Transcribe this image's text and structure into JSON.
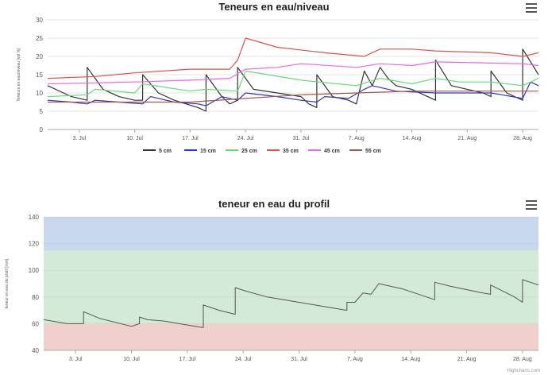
{
  "charts_ui": {
    "menu_icon": "hamburger-menu-icon",
    "credit": "Highcharts.com"
  },
  "chart_data": [
    {
      "type": "line",
      "title": "Teneurs en eau/niveau",
      "ylabel": "Teneurs en eau/niveau [vol %]",
      "xlabel": "",
      "ylim": [
        0,
        30
      ],
      "yticks": [
        0,
        5,
        10,
        15,
        20,
        25,
        30
      ],
      "xlim": [
        "2023-06-29",
        "2023-08-30"
      ],
      "xticks": [
        "3. Jul",
        "10. Jul",
        "17. Jul",
        "24. Jul",
        "31. Jul",
        "7. Aug",
        "14. Aug",
        "21. Aug",
        "28. Aug"
      ],
      "grid": true,
      "legend": "bottom",
      "series": [
        {
          "name": "5 cm",
          "color": "#333333",
          "x": [
            "2023-06-29",
            "2023-07-01",
            "2023-07-02",
            "2023-07-04",
            "2023-07-04",
            "2023-07-06",
            "2023-07-08",
            "2023-07-10",
            "2023-07-11",
            "2023-07-11",
            "2023-07-13",
            "2023-07-15",
            "2023-07-18",
            "2023-07-19",
            "2023-07-19",
            "2023-07-21",
            "2023-07-22",
            "2023-07-23",
            "2023-07-23",
            "2023-07-25",
            "2023-07-28",
            "2023-07-31",
            "2023-08-01",
            "2023-08-02",
            "2023-08-02",
            "2023-08-04",
            "2023-08-06",
            "2023-08-07",
            "2023-08-08",
            "2023-08-09",
            "2023-08-10",
            "2023-08-11",
            "2023-08-12",
            "2023-08-14",
            "2023-08-16",
            "2023-08-17",
            "2023-08-17",
            "2023-08-19",
            "2023-08-21",
            "2023-08-23",
            "2023-08-24",
            "2023-08-24",
            "2023-08-26",
            "2023-08-28",
            "2023-08-28",
            "2023-08-30"
          ],
          "values": [
            12,
            10,
            9,
            8,
            17,
            11,
            9,
            8,
            8,
            15,
            10,
            8,
            6,
            5,
            15,
            9,
            7,
            8,
            17,
            11,
            10,
            9,
            7,
            6,
            15,
            9,
            8,
            7,
            16,
            12,
            17,
            14,
            12,
            11,
            9,
            8,
            19,
            12,
            11,
            10,
            9,
            16,
            10,
            8,
            22,
            15
          ]
        },
        {
          "name": "15 cm",
          "color": "#3333cc",
          "x": [
            "2023-06-29",
            "2023-07-02",
            "2023-07-04",
            "2023-07-05",
            "2023-07-08",
            "2023-07-11",
            "2023-07-12",
            "2023-07-15",
            "2023-07-18",
            "2023-07-19",
            "2023-07-21",
            "2023-07-23",
            "2023-07-24",
            "2023-07-28",
            "2023-07-31",
            "2023-08-02",
            "2023-08-03",
            "2023-08-06",
            "2023-08-08",
            "2023-08-09",
            "2023-08-12",
            "2023-08-17",
            "2023-08-21",
            "2023-08-24",
            "2023-08-28",
            "2023-08-29",
            "2023-08-30"
          ],
          "values": [
            8,
            7.5,
            7,
            8,
            7.5,
            7,
            9,
            7.5,
            7,
            6.5,
            9,
            8,
            10,
            9,
            8,
            7.5,
            9,
            8.5,
            11,
            12,
            10.5,
            10,
            10,
            10,
            8.5,
            13,
            12
          ]
        },
        {
          "name": "25 cm",
          "color": "#66dd77",
          "x": [
            "2023-06-29",
            "2023-07-04",
            "2023-07-05",
            "2023-07-10",
            "2023-07-11",
            "2023-07-17",
            "2023-07-19",
            "2023-07-23",
            "2023-07-24",
            "2023-07-31",
            "2023-08-07",
            "2023-08-10",
            "2023-08-14",
            "2023-08-17",
            "2023-08-20",
            "2023-08-24",
            "2023-08-28",
            "2023-08-30"
          ],
          "values": [
            9,
            9.5,
            11,
            10,
            12.5,
            10.5,
            11,
            10.5,
            16,
            13.5,
            12,
            14,
            12.5,
            14,
            13,
            13,
            12,
            14
          ]
        },
        {
          "name": "35 cm",
          "color": "#e05050",
          "x": [
            "2023-06-29",
            "2023-07-05",
            "2023-07-10",
            "2023-07-17",
            "2023-07-22",
            "2023-07-23",
            "2023-07-24",
            "2023-07-28",
            "2023-08-03",
            "2023-08-08",
            "2023-08-10",
            "2023-08-14",
            "2023-08-17",
            "2023-08-24",
            "2023-08-28",
            "2023-08-30"
          ],
          "values": [
            14,
            14.5,
            15.5,
            16.5,
            16.5,
            19,
            25,
            22.5,
            21,
            20,
            22,
            22,
            21.5,
            21,
            20,
            21
          ]
        },
        {
          "name": "45 cm",
          "color": "#ee66ee",
          "x": [
            "2023-06-29",
            "2023-07-10",
            "2023-07-17",
            "2023-07-22",
            "2023-07-24",
            "2023-07-28",
            "2023-07-31",
            "2023-08-07",
            "2023-08-10",
            "2023-08-14",
            "2023-08-17",
            "2023-08-28",
            "2023-08-30"
          ],
          "values": [
            12.5,
            13,
            13.5,
            14,
            16.5,
            17,
            18,
            17,
            18,
            17.5,
            18.5,
            18,
            17.5
          ]
        },
        {
          "name": "55 cm",
          "color": "#a05a4a",
          "x": [
            "2023-06-29",
            "2023-07-10",
            "2023-07-17",
            "2023-07-24",
            "2023-07-31",
            "2023-08-07",
            "2023-08-14",
            "2023-08-21",
            "2023-08-28",
            "2023-08-30"
          ],
          "values": [
            7.5,
            7.5,
            7.5,
            8.5,
            9.5,
            10,
            10.5,
            10.5,
            10.5,
            10.5
          ]
        }
      ]
    },
    {
      "type": "area",
      "title": "teneur en eau du profil",
      "ylabel": "teneur en eau du profil [mm]",
      "xlabel": "",
      "ylim": [
        40,
        140
      ],
      "yticks": [
        40,
        60,
        80,
        100,
        120,
        140
      ],
      "xlim": [
        "2023-06-29",
        "2023-08-30"
      ],
      "xticks": [
        "3. Jul",
        "10. Jul",
        "17. Jul",
        "24. Jul",
        "31. Jul",
        "7. Aug",
        "14. Aug",
        "21. Aug",
        "28. Aug"
      ],
      "grid": true,
      "legend": "none",
      "bands": [
        {
          "from": 40,
          "to": 60,
          "color": "#f0d0cc"
        },
        {
          "from": 60,
          "to": 115,
          "color": "#d4ead8"
        },
        {
          "from": 115,
          "to": 140,
          "color": "#c8d8ee"
        }
      ],
      "series": [
        {
          "name": "",
          "color": "#555555",
          "x": [
            "2023-06-29",
            "2023-07-01",
            "2023-07-02",
            "2023-07-04",
            "2023-07-04",
            "2023-07-06",
            "2023-07-10",
            "2023-07-11",
            "2023-07-11",
            "2023-07-12",
            "2023-07-14",
            "2023-07-18",
            "2023-07-19",
            "2023-07-19",
            "2023-07-21",
            "2023-07-23",
            "2023-07-23",
            "2023-07-24",
            "2023-07-27",
            "2023-07-31",
            "2023-08-02",
            "2023-08-04",
            "2023-08-06",
            "2023-08-06",
            "2023-08-07",
            "2023-08-08",
            "2023-08-09",
            "2023-08-10",
            "2023-08-13",
            "2023-08-16",
            "2023-08-17",
            "2023-08-17",
            "2023-08-19",
            "2023-08-23",
            "2023-08-24",
            "2023-08-24",
            "2023-08-27",
            "2023-08-28",
            "2023-08-28",
            "2023-08-30"
          ],
          "values": [
            63,
            61,
            60,
            60,
            69,
            64,
            58,
            60,
            65,
            63,
            62,
            58,
            57,
            74,
            70,
            67,
            87,
            85,
            80,
            76,
            74,
            72,
            70,
            76,
            76,
            83,
            82,
            90,
            86,
            80,
            78,
            91,
            88,
            83,
            82,
            89,
            80,
            76,
            93,
            89
          ]
        }
      ]
    }
  ]
}
